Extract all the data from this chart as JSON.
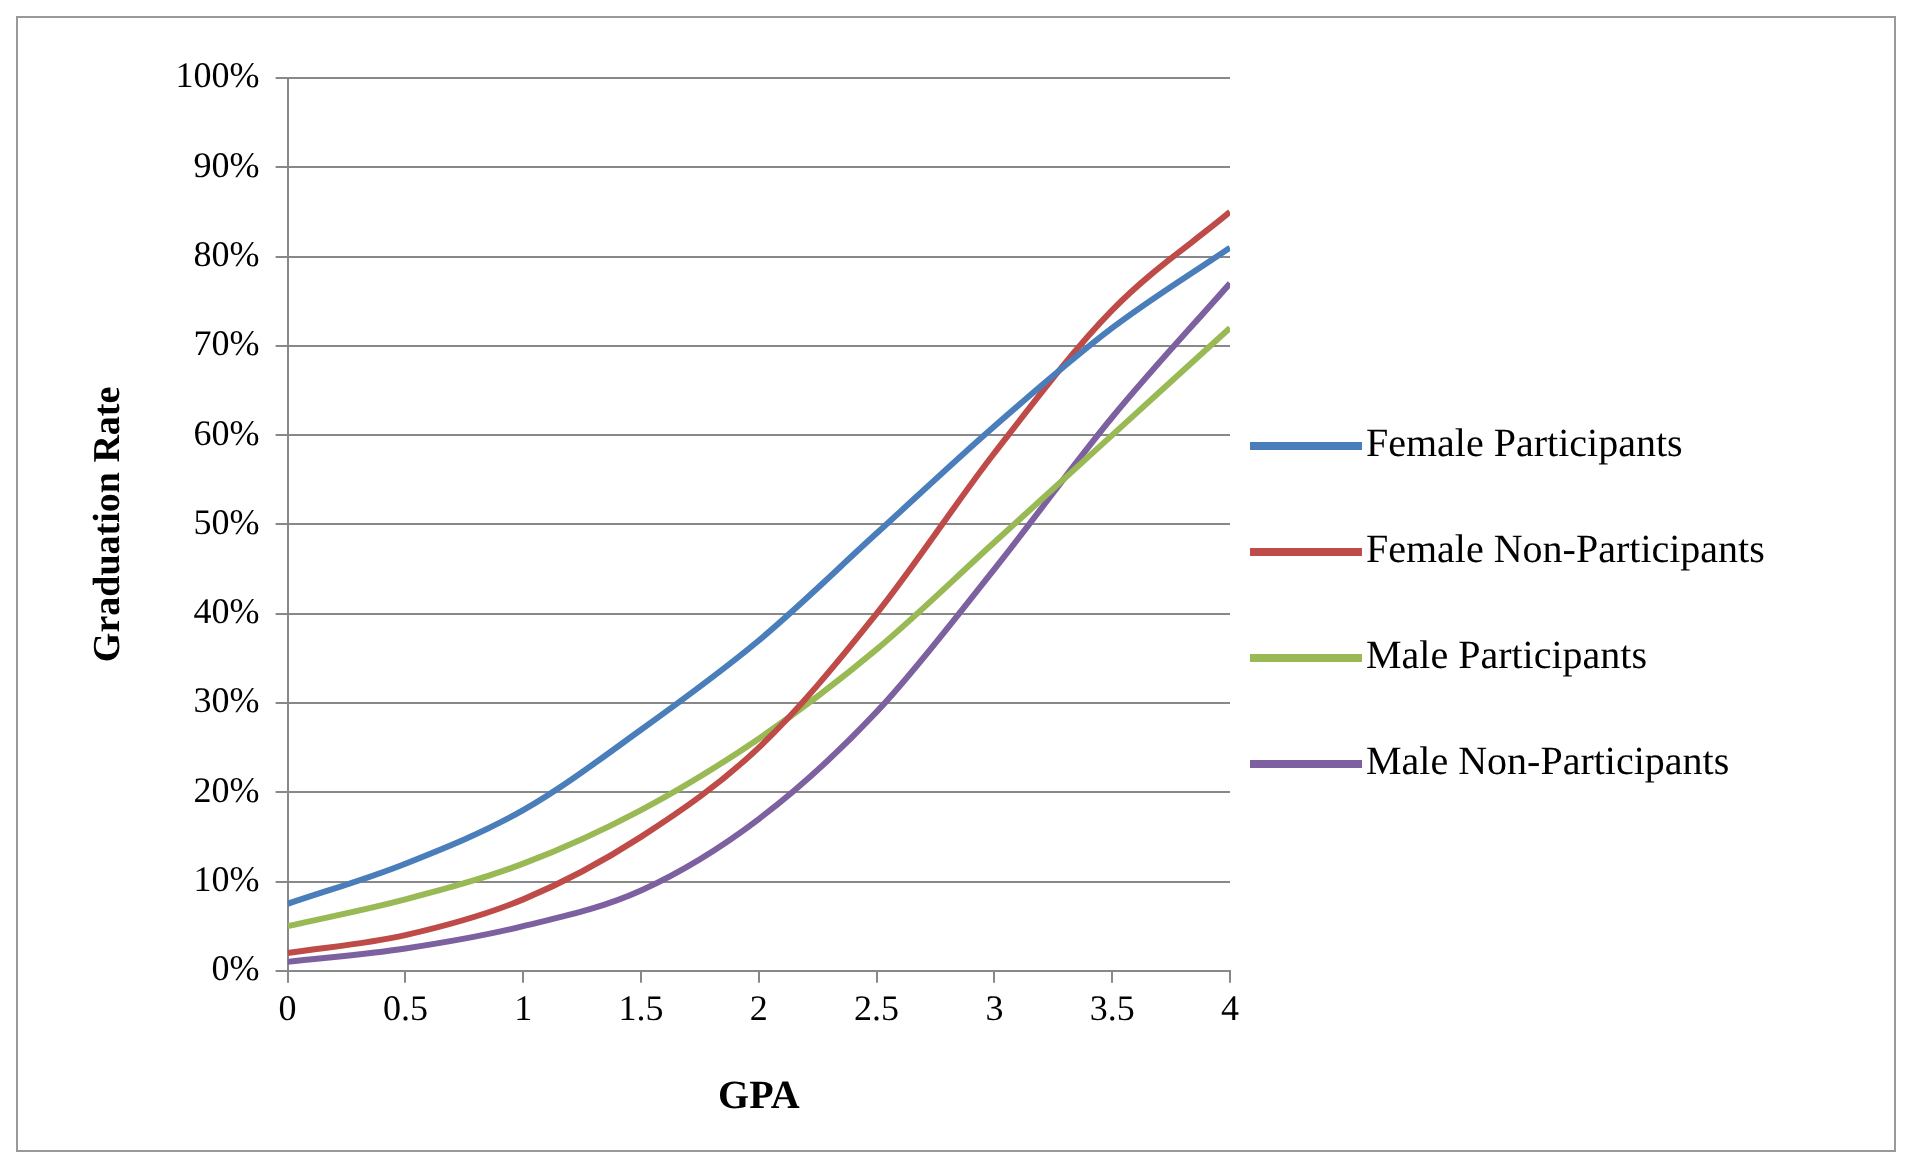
{
  "chart_data": {
    "type": "line",
    "xlabel": "GPA",
    "ylabel": "Graduation Rate",
    "x": [
      0,
      0.5,
      1,
      1.5,
      2,
      2.5,
      3,
      3.5,
      4
    ],
    "series": [
      {
        "name": "Female Participants",
        "color": "#4a7ebb",
        "values": [
          7.5,
          12,
          18,
          27,
          37,
          49,
          61,
          72,
          81
        ]
      },
      {
        "name": "Female Non-Participants",
        "color": "#be4b48",
        "values": [
          2,
          4,
          8,
          15,
          25,
          40,
          58,
          74,
          85
        ]
      },
      {
        "name": "Male Participants",
        "color": "#98b954",
        "values": [
          5,
          8,
          12,
          18,
          26,
          36,
          48,
          60,
          72
        ]
      },
      {
        "name": "Male Non-Participants",
        "color": "#7d60a0",
        "values": [
          1,
          2.5,
          5,
          9,
          17,
          29,
          45,
          62,
          77
        ]
      }
    ],
    "xlim": [
      0,
      4
    ],
    "xticks": [
      0,
      0.5,
      1,
      1.5,
      2,
      2.5,
      3,
      3.5,
      4
    ],
    "ylim": [
      0,
      100
    ],
    "yticks": [
      {
        "value": 0,
        "label": "0%"
      },
      {
        "value": 10,
        "label": "10%"
      },
      {
        "value": 20,
        "label": "20%"
      },
      {
        "value": 30,
        "label": "30%"
      },
      {
        "value": 40,
        "label": "40%"
      },
      {
        "value": 50,
        "label": "50%"
      },
      {
        "value": 60,
        "label": "60%"
      },
      {
        "value": 70,
        "label": "70%"
      },
      {
        "value": 80,
        "label": "80%"
      },
      {
        "value": 90,
        "label": "90%"
      },
      {
        "value": 100,
        "label": "100%"
      }
    ],
    "grid": "y",
    "legend": "right",
    "marker": "none",
    "line_style": "solid"
  }
}
